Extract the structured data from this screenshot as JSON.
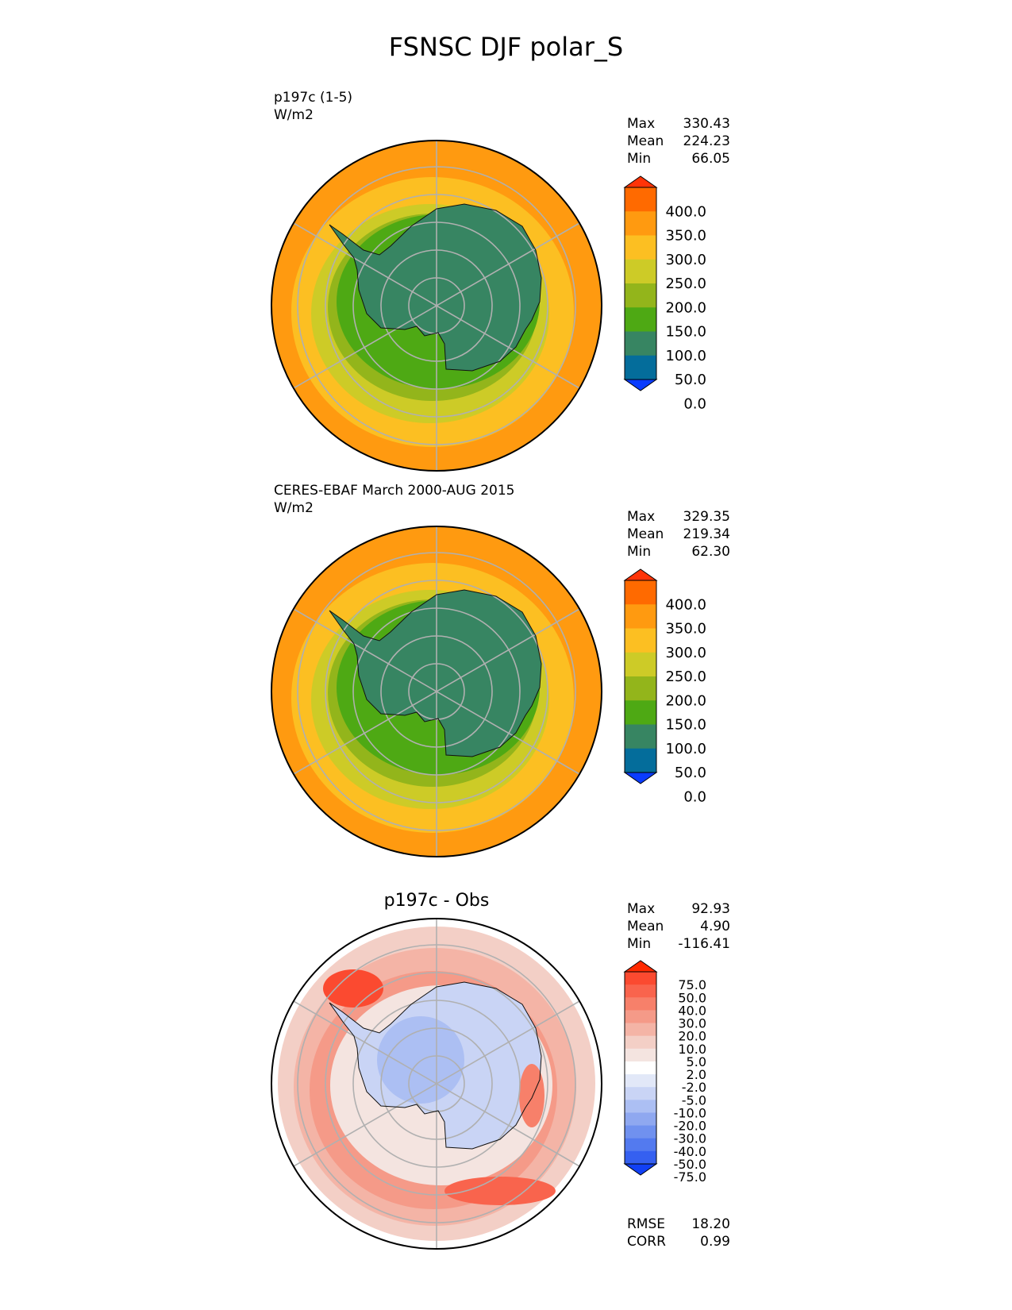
{
  "title": "FSNSC DJF polar_S",
  "chart_data": [
    {
      "type": "polar_contour_map",
      "title": "p197c (1-5)",
      "units": "W/m2",
      "stats": [
        {
          "label": "Max",
          "value": "330.43"
        },
        {
          "label": "Mean",
          "value": "224.23"
        },
        {
          "label": "Min",
          "value": "66.05"
        }
      ],
      "colorbar": {
        "labels": [
          "400.0",
          "350.0",
          "300.0",
          "250.0",
          "200.0",
          "150.0",
          "100.0",
          "50.0",
          "0.0"
        ],
        "colors": [
          "#ff3408",
          "#ff6a00",
          "#ff9a10",
          "#fcbf22",
          "#cdcb27",
          "#93b51b",
          "#4ea914",
          "#378562",
          "#046d9b",
          "#0a3cff"
        ]
      }
    },
    {
      "type": "polar_contour_map",
      "title": "CERES-EBAF March 2000-AUG 2015",
      "units": "W/m2",
      "stats": [
        {
          "label": "Max",
          "value": "329.35"
        },
        {
          "label": "Mean",
          "value": "219.34"
        },
        {
          "label": "Min",
          "value": "62.30"
        }
      ],
      "colorbar": {
        "labels": [
          "400.0",
          "350.0",
          "300.0",
          "250.0",
          "200.0",
          "150.0",
          "100.0",
          "50.0",
          "0.0"
        ],
        "colors": [
          "#ff3408",
          "#ff6a00",
          "#ff9a10",
          "#fcbf22",
          "#cdcb27",
          "#93b51b",
          "#4ea914",
          "#378562",
          "#046d9b",
          "#0a3cff"
        ]
      }
    },
    {
      "type": "polar_contour_map",
      "title": "p197c - Obs",
      "stats": [
        {
          "label": "Max",
          "value": "92.93"
        },
        {
          "label": "Mean",
          "value": "4.90"
        },
        {
          "label": "Min",
          "value": "-116.41"
        }
      ],
      "colorbar": {
        "labels": [
          "75.0",
          "50.0",
          "40.0",
          "30.0",
          "20.0",
          "10.0",
          "5.0",
          "2.0",
          "-2.0",
          "-5.0",
          "-10.0",
          "-20.0",
          "-30.0",
          "-40.0",
          "-50.0",
          "-75.0"
        ],
        "colors": [
          "#ff2a00",
          "#fb4a30",
          "#f9644d",
          "#f7806a",
          "#f59a88",
          "#f4b4a6",
          "#f3cfc6",
          "#f4e4e0",
          "#ffffff",
          "#e2e8f8",
          "#c9d4f5",
          "#acbff3",
          "#8fa8f0",
          "#7091ef",
          "#537aef",
          "#3560f0",
          "#1140f5"
        ]
      },
      "footer": [
        {
          "label": "RMSE",
          "value": "18.20"
        },
        {
          "label": "CORR",
          "value": "0.99"
        }
      ]
    }
  ]
}
